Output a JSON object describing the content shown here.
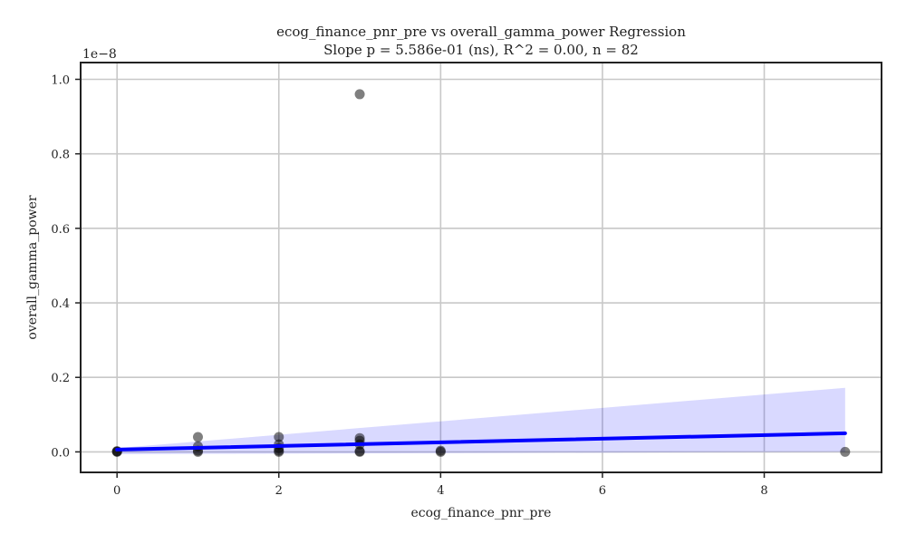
{
  "chart_data": {
    "type": "scatter",
    "title": "ecog_finance_pnr_pre vs overall_gamma_power Regression",
    "subtitle": "Slope p = 5.586e-01 (ns), R^2 = 0.00, n = 82",
    "xlabel": "ecog_finance_pnr_pre",
    "ylabel": "overall_gamma_power",
    "y_scale_label": "1e−8",
    "xlim": [
      -0.45,
      9.45
    ],
    "ylim": [
      -0.055,
      1.045
    ],
    "x_ticks": [
      0,
      2,
      4,
      6,
      8
    ],
    "x_tick_labels": [
      "0",
      "2",
      "4",
      "6",
      "8"
    ],
    "y_ticks": [
      0.0,
      0.2,
      0.4,
      0.6,
      0.8,
      1.0
    ],
    "y_tick_labels": [
      "0.0",
      "0.2",
      "0.4",
      "0.6",
      "0.8",
      "1.0"
    ],
    "grid": true,
    "points": [
      {
        "x": 0,
        "y": 0.0
      },
      {
        "x": 0,
        "y": 0.001
      },
      {
        "x": 0,
        "y": 0.002
      },
      {
        "x": 1,
        "y": 0.04
      },
      {
        "x": 1,
        "y": 0.015
      },
      {
        "x": 1,
        "y": 0.003
      },
      {
        "x": 1,
        "y": 0.0
      },
      {
        "x": 2,
        "y": 0.04
      },
      {
        "x": 2,
        "y": 0.02
      },
      {
        "x": 2,
        "y": 0.01
      },
      {
        "x": 2,
        "y": 0.003
      },
      {
        "x": 2,
        "y": 0.0
      },
      {
        "x": 3,
        "y": 0.96
      },
      {
        "x": 3,
        "y": 0.037
      },
      {
        "x": 3,
        "y": 0.03
      },
      {
        "x": 3,
        "y": 0.02
      },
      {
        "x": 3,
        "y": 0.002
      },
      {
        "x": 3,
        "y": 0.0
      },
      {
        "x": 4,
        "y": 0.003
      },
      {
        "x": 4,
        "y": 0.0
      },
      {
        "x": 9,
        "y": 0.0
      }
    ],
    "regression_line": {
      "x": [
        0,
        9
      ],
      "y": [
        0.006,
        0.05
      ]
    },
    "confidence_band": {
      "x": [
        0,
        9
      ],
      "upper": [
        0.01,
        0.172
      ],
      "lower": [
        -0.006,
        0.0
      ]
    },
    "colors": {
      "points": "#000000",
      "regression": "#0000ff",
      "band": "#0000ff",
      "grid": "#c8c8c8",
      "axes": "#222222"
    }
  }
}
